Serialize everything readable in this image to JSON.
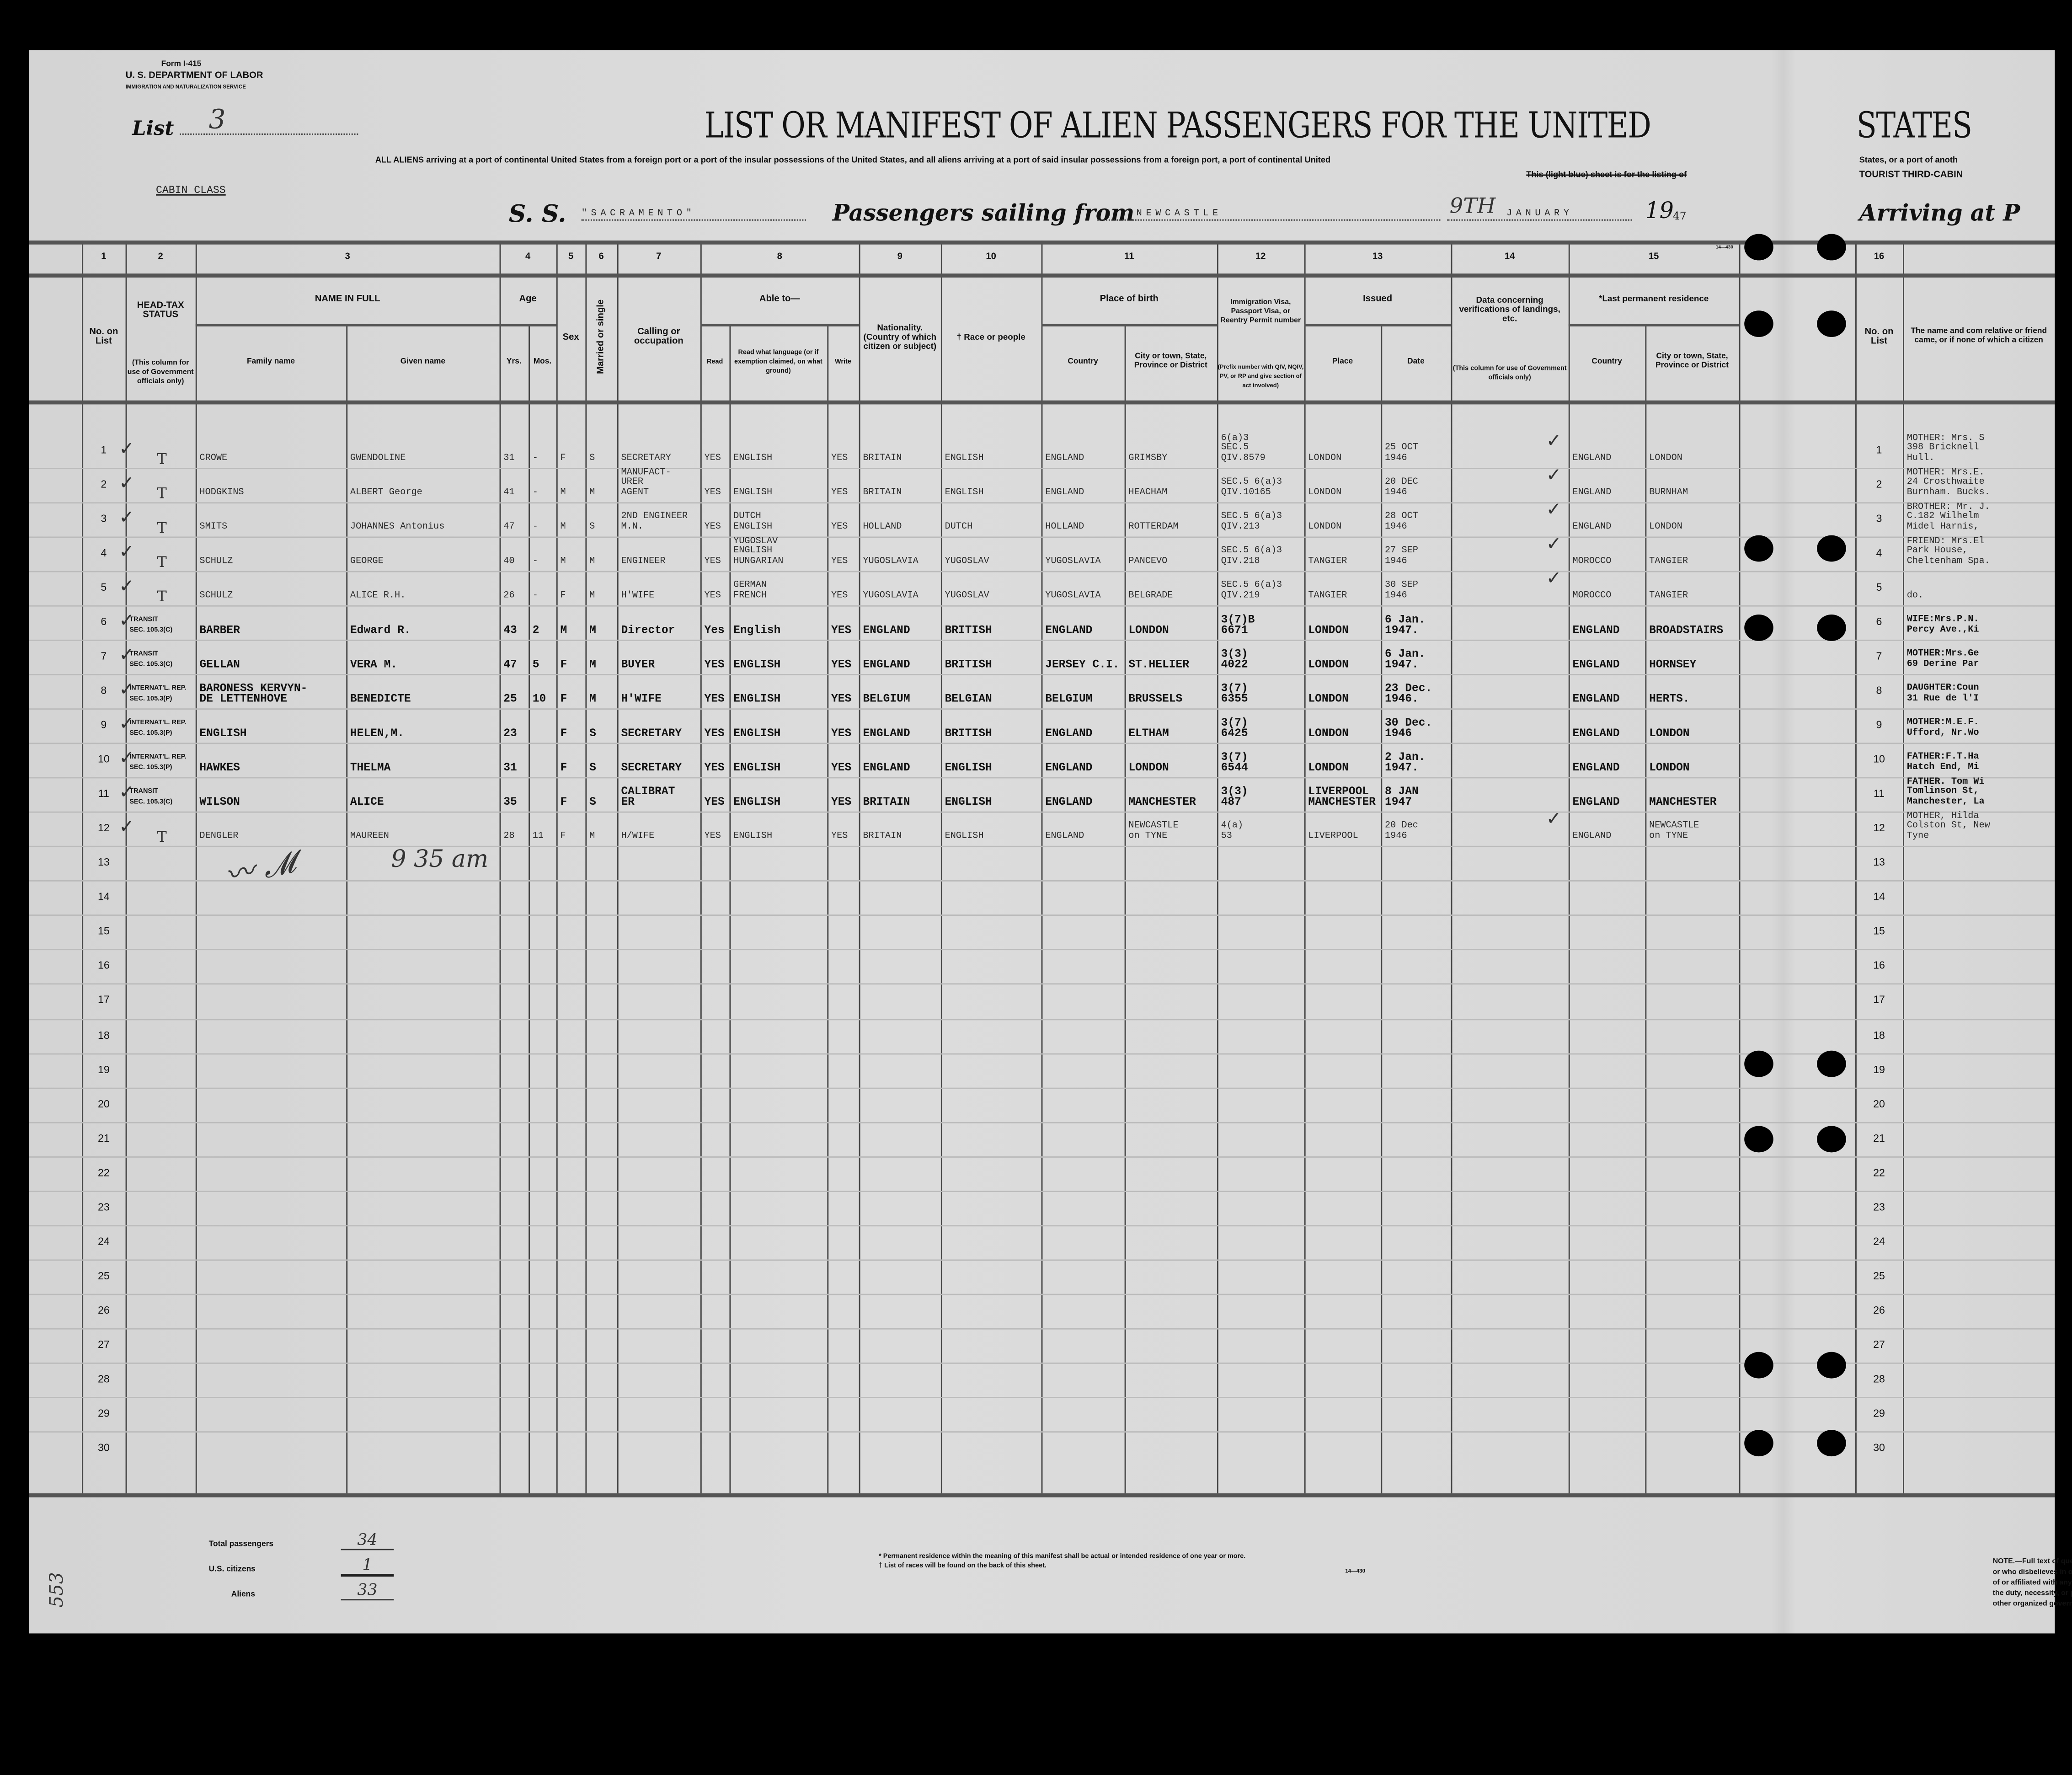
{
  "form": {
    "number": "Form I-415",
    "department": "U. S. DEPARTMENT OF LABOR",
    "service": "IMMIGRATION AND NATURALIZATION SERVICE",
    "list_label": "List",
    "list_number": "3",
    "class": "CABIN CLASS"
  },
  "header": {
    "title": "LIST OR MANIFEST OF ALIEN PASSENGERS FOR THE UNITED",
    "title_cont": "STATES",
    "subtitle": "ALL ALIENS arriving at a port of continental United States from a foreign port or a port of the insular possessions of the United States, and all aliens arriving at a port of said insular possessions from a foreign port, a port of continental United",
    "subtitle2": "This (light blue) sheet is for the listing of",
    "subtitle_cont": "States, or a port of anoth",
    "subtitle_cont2": "TOURIST THIRD-CABIN",
    "ss_label": "S. S.",
    "ship": "\"SACRAMENTO\"",
    "sailing_label": "Passengers sailing from",
    "port": "NEWCASTLE",
    "day": "9TH",
    "month": "JANUARY",
    "year_prefix": "19",
    "year_suffix": "47",
    "arriving_label": "Arriving at P"
  },
  "columns": {
    "numbers": [
      "1",
      "2",
      "3",
      "4",
      "5",
      "6",
      "7",
      "8",
      "9",
      "10",
      "11",
      "12",
      "13",
      "14",
      "15",
      "16"
    ],
    "no_on_list": "No. on List",
    "head_tax": "HEAD-TAX STATUS",
    "head_tax_note": "(This column for use of Government officials only)",
    "name_in_full": "NAME IN FULL",
    "family_name": "Family name",
    "given_name": "Given name",
    "age": "Age",
    "yrs": "Yrs.",
    "mos": "Mos.",
    "sex": "Sex",
    "married": "Married or single",
    "calling": "Calling or occupation",
    "able_to": "Able to—",
    "read": "Read",
    "read_language": "Read what language (or if exemption claimed, on what ground)",
    "write": "Write",
    "nationality": "Nationality. (Country of which citizen or subject)",
    "race": "† Race or people",
    "place_of_birth": "Place of birth",
    "birth_country": "Country",
    "birth_city": "City or town, State, Province or District",
    "visa": "Immigration Visa, Passport Visa, or Reentry Permit number",
    "visa_note": "(Prefix number with QIV, NQIV, PV, or RP and give section of act involved)",
    "issued": "Issued",
    "issued_place": "Place",
    "issued_date": "Date",
    "verification": "Data concerning verifications of landings, etc.",
    "verification_note": "(This column for use of Government officials only)",
    "last_residence": "*Last permanent residence",
    "res_country": "Country",
    "res_city": "City or town, State, Province or District",
    "relative": "The name and com relative or friend came, or if none of which a citizen",
    "form_code": "14—430"
  },
  "rows": [
    {
      "no": "1",
      "tax": "T",
      "family": "CROWE",
      "given": "GWENDOLINE",
      "yrs": "31",
      "mos": "-",
      "sex": "F",
      "marital": "S",
      "occupation": "SECRETARY",
      "read": "YES",
      "language": "ENGLISH",
      "write": "YES",
      "nationality": "BRITAIN",
      "race": "ENGLISH",
      "birth_country": "ENGLAND",
      "birth_city": "GRIMSBY",
      "visa": "6(a)3\nSEC.5\nQIV.8579",
      "issued_place": "LONDON",
      "issued_date": "25 OCT\n1946",
      "res_country": "ENGLAND",
      "res_city": "LONDON",
      "relative": "MOTHER: Mrs. S\n398 Bricknell\nHull.",
      "no2": "1"
    },
    {
      "no": "2",
      "tax": "T",
      "family": "HODGKINS",
      "given": "ALBERT George",
      "yrs": "41",
      "mos": "-",
      "sex": "M",
      "marital": "M",
      "occupation": "MANUFACT-\nURER\nAGENT",
      "read": "YES",
      "language": "ENGLISH",
      "write": "YES",
      "nationality": "BRITAIN",
      "race": "ENGLISH",
      "birth_country": "ENGLAND",
      "birth_city": "HEACHAM",
      "visa": "SEC.5 6(a)3\nQIV.10165",
      "issued_place": "LONDON",
      "issued_date": "20 DEC\n1946",
      "res_country": "ENGLAND",
      "res_city": "BURNHAM",
      "relative": "MOTHER: Mrs.E.\n24 Crosthwaite\nBurnham. Bucks.",
      "no2": "2"
    },
    {
      "no": "3",
      "tax": "T",
      "family": "SMITS",
      "given": "JOHANNES Antonius",
      "yrs": "47",
      "mos": "-",
      "sex": "M",
      "marital": "S",
      "occupation": "2ND ENGINEER\nM.N.",
      "read": "YES",
      "language": "DUTCH\nENGLISH",
      "write": "YES",
      "nationality": "HOLLAND",
      "race": "DUTCH",
      "birth_country": "HOLLAND",
      "birth_city": "ROTTERDAM",
      "visa": "SEC.5 6(a)3\nQIV.213",
      "issued_place": "LONDON",
      "issued_date": "28 OCT\n1946",
      "res_country": "ENGLAND",
      "res_city": "LONDON",
      "relative": "BROTHER: Mr. J.\nC.182 Wilhelm\nMidel Harnis,",
      "no2": "3"
    },
    {
      "no": "4",
      "tax": "T",
      "family": "SCHULZ",
      "given": "GEORGE",
      "yrs": "40",
      "mos": "-",
      "sex": "M",
      "marital": "M",
      "occupation": "ENGINEER",
      "read": "YES",
      "language": "YUGOSLAV\nENGLISH\nHUNGARIAN",
      "write": "YES",
      "nationality": "YUGOSLAVIA",
      "race": "YUGOSLAV",
      "birth_country": "YUGOSLAVIA",
      "birth_city": "PANCEVO",
      "visa": "SEC.5 6(a)3\nQIV.218",
      "issued_place": "TANGIER",
      "issued_date": "27 SEP\n1946",
      "res_country": "MOROCCO",
      "res_city": "TANGIER",
      "relative": "FRIEND: Mrs.El\nPark House,\nCheltenham Spa.",
      "no2": "4"
    },
    {
      "no": "5",
      "tax": "T",
      "family": "SCHULZ",
      "given": "ALICE R.H.",
      "yrs": "26",
      "mos": "-",
      "sex": "F",
      "marital": "M",
      "occupation": "H'WIFE",
      "read": "YES",
      "language": "GERMAN\nFRENCH",
      "write": "YES",
      "nationality": "YUGOSLAVIA",
      "race": "YUGOSLAV",
      "birth_country": "YUGOSLAVIA",
      "birth_city": "BELGRADE",
      "visa": "SEC.5 6(a)3\nQIV.219",
      "issued_place": "TANGIER",
      "issued_date": "30 SEP\n1946",
      "res_country": "MOROCCO",
      "res_city": "TANGIER",
      "relative": "do.",
      "no2": "5"
    },
    {
      "no": "6",
      "tax": "TRANSIT\nSEC. 105.3(C)",
      "family": "BARBER",
      "given": "Edward R.",
      "yrs": "43",
      "mos": "2",
      "sex": "M",
      "marital": "M",
      "occupation": "Director",
      "read": "Yes",
      "language": "English",
      "write": "YES",
      "nationality": "ENGLAND",
      "race": "BRITISH",
      "birth_country": "ENGLAND",
      "birth_city": "LONDON",
      "visa": "3(7)B\n6671",
      "issued_place": "LONDON",
      "issued_date": "6 Jan.\n1947.",
      "res_country": "ENGLAND",
      "res_city": "BROADSTAIRS",
      "relative": "WIFE:Mrs.P.N.\nPercy Ave.,Ki",
      "no2": "6"
    },
    {
      "no": "7",
      "tax": "TRANSIT\nSEC. 105.3(C)",
      "family": "GELLAN",
      "given": "VERA M.",
      "yrs": "47",
      "mos": "5",
      "sex": "F",
      "marital": "M",
      "occupation": "BUYER",
      "read": "YES",
      "language": "ENGLISH",
      "write": "YES",
      "nationality": "ENGLAND",
      "race": "BRITISH",
      "birth_country": "JERSEY C.I.",
      "birth_city": "ST.HELIER",
      "visa": "3(3)\n4022",
      "issued_place": "LONDON",
      "issued_date": "6 Jan.\n1947.",
      "res_country": "ENGLAND",
      "res_city": "HORNSEY",
      "relative": "MOTHER:Mrs.Ge\n69 Derine Par",
      "no2": "7"
    },
    {
      "no": "8",
      "tax": "INTERNAT'L. REP.\nSEC. 105.3(P)",
      "family": "BARONESS KERVYN-\nDE LETTENHOVE",
      "given": "BENEDICTE",
      "yrs": "25",
      "mos": "10",
      "sex": "F",
      "marital": "M",
      "occupation": "H'WIFE",
      "read": "YES",
      "language": "ENGLISH",
      "write": "YES",
      "nationality": "BELGIUM",
      "race": "BELGIAN",
      "birth_country": "BELGIUM",
      "birth_city": "BRUSSELS",
      "visa": "3(7)\n6355",
      "issued_place": "LONDON",
      "issued_date": "23 Dec.\n1946.",
      "res_country": "ENGLAND",
      "res_city": "HERTS.",
      "relative": "DAUGHTER:Coun\n31 Rue de l'I",
      "no2": "8"
    },
    {
      "no": "9",
      "tax": "INTERNAT'L. REP.\nSEC. 105.3(P)",
      "family": "ENGLISH",
      "given": "HELEN,M.",
      "yrs": "23",
      "mos": "",
      "sex": "F",
      "marital": "S",
      "occupation": "SECRETARY",
      "read": "YES",
      "language": "ENGLISH",
      "write": "YES",
      "nationality": "ENGLAND",
      "race": "BRITISH",
      "birth_country": "ENGLAND",
      "birth_city": "ELTHAM",
      "visa": "3(7)\n6425",
      "issued_place": "LONDON",
      "issued_date": "30 Dec.\n1946",
      "res_country": "ENGLAND",
      "res_city": "LONDON",
      "relative": "MOTHER:M.E.F.\nUfford, Nr.Wo",
      "no2": "9"
    },
    {
      "no": "10",
      "tax": "INTERNAT'L. REP.\nSEC. 105.3(P)",
      "family": "HAWKES",
      "given": "THELMA",
      "yrs": "31",
      "mos": "",
      "sex": "F",
      "marital": "S",
      "occupation": "SECRETARY",
      "read": "YES",
      "language": "ENGLISH",
      "write": "YES",
      "nationality": "ENGLAND",
      "race": "ENGLISH",
      "birth_country": "ENGLAND",
      "birth_city": "LONDON",
      "visa": "3(7)\n6544",
      "issued_place": "LONDON",
      "issued_date": "2 Jan.\n1947.",
      "res_country": "ENGLAND",
      "res_city": "LONDON",
      "relative": "FATHER:F.T.Ha\nHatch End, Mi",
      "no2": "10"
    },
    {
      "no": "11",
      "tax": "TRANSIT\nSEC. 105.3(C)",
      "family": "WILSON",
      "given": "ALICE",
      "yrs": "35",
      "mos": "",
      "sex": "F",
      "marital": "S",
      "occupation": "CALIBRAT\nER",
      "read": "YES",
      "language": "ENGLISH",
      "write": "YES",
      "nationality": "BRITAIN",
      "race": "ENGLISH",
      "birth_country": "ENGLAND",
      "birth_city": "MANCHESTER",
      "visa": "3(3)\n487",
      "issued_place": "LIVERPOOL\nMANCHESTER",
      "issued_date": "8 JAN\n1947",
      "res_country": "ENGLAND",
      "res_city": "MANCHESTER",
      "relative": "FATHER. Tom Wi\nTomlinson St,\nManchester, La",
      "no2": "11"
    },
    {
      "no": "12",
      "tax": "T",
      "family": "DENGLER",
      "given": "MAUREEN",
      "yrs": "28",
      "mos": "11",
      "sex": "F",
      "marital": "M",
      "occupation": "H/WIFE",
      "read": "YES",
      "language": "ENGLISH",
      "write": "YES",
      "nationality": "BRITAIN",
      "race": "ENGLISH",
      "birth_country": "ENGLAND",
      "birth_city": "NEWCASTLE\non TYNE",
      "visa": "4(a)\n53",
      "issued_place": "LIVERPOOL",
      "issued_date": "20 Dec\n1946",
      "res_country": "ENGLAND",
      "res_city": "NEWCASTLE\non TYNE",
      "relative": "MOTHER, Hilda\nColston St, New\nTyne",
      "no2": "12"
    }
  ],
  "empty_row_numbers": [
    "13",
    "14",
    "15",
    "16",
    "17",
    "18",
    "19",
    "20",
    "21",
    "22",
    "23",
    "24",
    "25",
    "26",
    "27",
    "28",
    "29",
    "30"
  ],
  "annotations": {
    "signature": "Paul Mayer",
    "time": "9 35 am",
    "margin_number": "553"
  },
  "totals": {
    "total_label": "Total passengers",
    "total": "34",
    "citizens_label": "U.S. citizens",
    "citizens": "1",
    "aliens_label": "Aliens",
    "aliens": "33"
  },
  "footnotes": {
    "residence": "* Permanent residence within the meaning of this manifest shall be actual or intended residence of one year or more.",
    "races": "† List of races will be found on the back of this sheet.",
    "code": "14—430",
    "note": "NOTE.—Full text of que\nor who disbelieves in or is opp\nof or affiliated with any organ\nthe duty, necessity, or propr\nother organized government"
  },
  "icons": {
    "check": "check-mark",
    "hole": "punch-hole"
  }
}
